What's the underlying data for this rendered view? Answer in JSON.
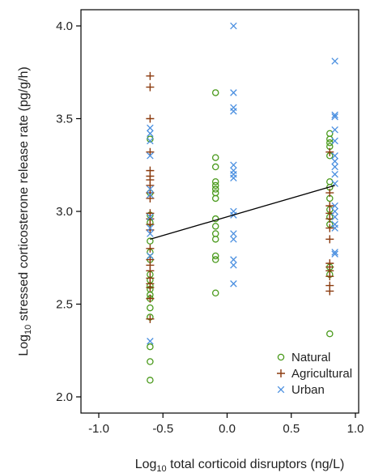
{
  "chart_data": {
    "type": "scatter",
    "xlabel": {
      "prefix": "Log",
      "sub": "10",
      "rest": " total corticoid disruptors (ng/L)"
    },
    "ylabel": {
      "prefix": "Log",
      "sub": "10",
      "rest": " stressed corticosterone release rate (pg/g/h)"
    },
    "xlim": [
      -1.0,
      1.0
    ],
    "ylim": [
      2.0,
      4.0
    ],
    "x_ticks": [
      "-1.0",
      "-0.5",
      "0.0",
      "0.5",
      "1.0"
    ],
    "y_ticks": [
      "2.0",
      "2.5",
      "3.0",
      "3.5",
      "4.0"
    ],
    "legend_position": "bottom-right",
    "colors": {
      "Natural": "#4a9a1c",
      "Agricultural": "#8b3a0e",
      "Urban": "#4a8fe0",
      "fit": "#000000"
    },
    "fit_line": {
      "x": [
        -0.6,
        0.84
      ],
      "y": [
        2.85,
        3.14
      ]
    },
    "series": [
      {
        "name": "Natural",
        "marker": "circle",
        "points": [
          [
            -0.6,
            3.39
          ],
          [
            -0.6,
            3.1
          ],
          [
            -0.6,
            2.98
          ],
          [
            -0.6,
            2.94
          ],
          [
            -0.6,
            2.84
          ],
          [
            -0.6,
            2.78
          ],
          [
            -0.6,
            2.74
          ],
          [
            -0.6,
            2.66
          ],
          [
            -0.6,
            2.63
          ],
          [
            -0.6,
            2.6
          ],
          [
            -0.6,
            2.58
          ],
          [
            -0.6,
            2.55
          ],
          [
            -0.6,
            2.53
          ],
          [
            -0.6,
            2.48
          ],
          [
            -0.6,
            2.43
          ],
          [
            -0.6,
            2.27
          ],
          [
            -0.6,
            2.19
          ],
          [
            -0.6,
            2.09
          ],
          [
            -0.09,
            3.64
          ],
          [
            -0.09,
            3.29
          ],
          [
            -0.09,
            3.24
          ],
          [
            -0.09,
            3.16
          ],
          [
            -0.09,
            3.14
          ],
          [
            -0.09,
            3.12
          ],
          [
            -0.09,
            3.1
          ],
          [
            -0.09,
            3.07
          ],
          [
            -0.09,
            2.96
          ],
          [
            -0.09,
            2.92
          ],
          [
            -0.09,
            2.88
          ],
          [
            -0.09,
            2.85
          ],
          [
            -0.09,
            2.76
          ],
          [
            -0.09,
            2.74
          ],
          [
            -0.09,
            2.56
          ],
          [
            0.8,
            3.42
          ],
          [
            0.8,
            3.39
          ],
          [
            0.8,
            3.37
          ],
          [
            0.8,
            3.35
          ],
          [
            0.8,
            3.3
          ],
          [
            0.8,
            3.16
          ],
          [
            0.8,
            3.13
          ],
          [
            0.8,
            3.07
          ],
          [
            0.8,
            3.01
          ],
          [
            0.8,
            2.97
          ],
          [
            0.8,
            2.93
          ],
          [
            0.8,
            2.7
          ],
          [
            0.8,
            2.66
          ],
          [
            0.8,
            2.34
          ]
        ]
      },
      {
        "name": "Agricultural",
        "marker": "plus",
        "points": [
          [
            -0.6,
            3.73
          ],
          [
            -0.6,
            3.67
          ],
          [
            -0.6,
            3.5
          ],
          [
            -0.6,
            3.32
          ],
          [
            -0.6,
            3.22
          ],
          [
            -0.6,
            3.19
          ],
          [
            -0.6,
            3.17
          ],
          [
            -0.6,
            3.14
          ],
          [
            -0.6,
            3.1
          ],
          [
            -0.6,
            3.07
          ],
          [
            -0.6,
            2.99
          ],
          [
            -0.6,
            2.96
          ],
          [
            -0.6,
            2.93
          ],
          [
            -0.6,
            2.9
          ],
          [
            -0.6,
            2.8
          ],
          [
            -0.6,
            2.74
          ],
          [
            -0.6,
            2.71
          ],
          [
            -0.6,
            2.68
          ],
          [
            -0.6,
            2.64
          ],
          [
            -0.6,
            2.61
          ],
          [
            -0.6,
            2.59
          ],
          [
            -0.6,
            2.53
          ],
          [
            -0.6,
            2.42
          ],
          [
            0.8,
            3.32
          ],
          [
            0.8,
            3.1
          ],
          [
            0.8,
            3.03
          ],
          [
            0.8,
            2.99
          ],
          [
            0.8,
            2.96
          ],
          [
            0.8,
            2.91
          ],
          [
            0.8,
            2.85
          ],
          [
            0.8,
            2.72
          ],
          [
            0.8,
            2.7
          ],
          [
            0.8,
            2.68
          ],
          [
            0.8,
            2.65
          ],
          [
            0.8,
            2.6
          ],
          [
            0.8,
            2.57
          ]
        ]
      },
      {
        "name": "Urban",
        "marker": "x",
        "points": [
          [
            -0.6,
            3.45
          ],
          [
            -0.6,
            3.42
          ],
          [
            -0.6,
            3.38
          ],
          [
            -0.6,
            3.3
          ],
          [
            -0.6,
            3.12
          ],
          [
            -0.6,
            3.09
          ],
          [
            -0.6,
            2.97
          ],
          [
            -0.6,
            2.91
          ],
          [
            -0.6,
            2.88
          ],
          [
            -0.6,
            2.76
          ],
          [
            -0.6,
            2.3
          ],
          [
            0.05,
            4.0
          ],
          [
            0.05,
            3.64
          ],
          [
            0.05,
            3.56
          ],
          [
            0.05,
            3.54
          ],
          [
            0.05,
            3.25
          ],
          [
            0.05,
            3.22
          ],
          [
            0.05,
            3.2
          ],
          [
            0.05,
            3.18
          ],
          [
            0.05,
            3.0
          ],
          [
            0.05,
            2.98
          ],
          [
            0.05,
            2.88
          ],
          [
            0.05,
            2.85
          ],
          [
            0.05,
            2.74
          ],
          [
            0.05,
            2.71
          ],
          [
            0.05,
            2.61
          ],
          [
            0.84,
            3.81
          ],
          [
            0.84,
            3.52
          ],
          [
            0.84,
            3.51
          ],
          [
            0.84,
            3.44
          ],
          [
            0.84,
            3.38
          ],
          [
            0.84,
            3.3
          ],
          [
            0.84,
            3.27
          ],
          [
            0.84,
            3.24
          ],
          [
            0.84,
            3.2
          ],
          [
            0.84,
            3.15
          ],
          [
            0.84,
            3.03
          ],
          [
            0.84,
            3.0
          ],
          [
            0.84,
            2.97
          ],
          [
            0.84,
            2.93
          ],
          [
            0.84,
            2.91
          ],
          [
            0.84,
            2.78
          ],
          [
            0.84,
            2.77
          ]
        ]
      }
    ]
  }
}
